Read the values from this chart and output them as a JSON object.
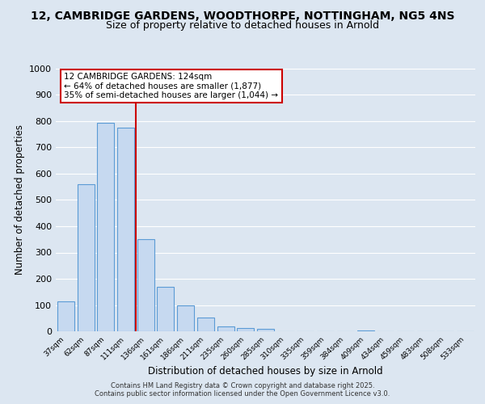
{
  "title": "12, CAMBRIDGE GARDENS, WOODTHORPE, NOTTINGHAM, NG5 4NS",
  "subtitle": "Size of property relative to detached houses in Arnold",
  "xlabel": "Distribution of detached houses by size in Arnold",
  "ylabel": "Number of detached properties",
  "bin_labels": [
    "37sqm",
    "62sqm",
    "87sqm",
    "111sqm",
    "136sqm",
    "161sqm",
    "186sqm",
    "211sqm",
    "235sqm",
    "260sqm",
    "285sqm",
    "310sqm",
    "335sqm",
    "359sqm",
    "384sqm",
    "409sqm",
    "434sqm",
    "459sqm",
    "483sqm",
    "508sqm",
    "533sqm"
  ],
  "bar_heights": [
    115,
    560,
    795,
    775,
    350,
    168,
    100,
    53,
    18,
    12,
    8,
    0,
    0,
    0,
    0,
    3,
    0,
    0,
    0,
    0,
    0
  ],
  "bar_color": "#c6d9f0",
  "bar_edge_color": "#5b9bd5",
  "background_color": "#dce6f1",
  "grid_color": "#ffffff",
  "vline_x": 3.5,
  "vline_color": "#cc0000",
  "annotation_line1": "12 CAMBRIDGE GARDENS: 124sqm",
  "annotation_line2": "← 64% of detached houses are smaller (1,877)",
  "annotation_line3": "35% of semi-detached houses are larger (1,044) →",
  "annotation_box_color": "#ffffff",
  "annotation_box_edge": "#cc0000",
  "ylim": [
    0,
    1000
  ],
  "yticks": [
    0,
    100,
    200,
    300,
    400,
    500,
    600,
    700,
    800,
    900,
    1000
  ],
  "footer1": "Contains HM Land Registry data © Crown copyright and database right 2025.",
  "footer2": "Contains public sector information licensed under the Open Government Licence v3.0.",
  "title_fontsize": 10,
  "subtitle_fontsize": 9
}
